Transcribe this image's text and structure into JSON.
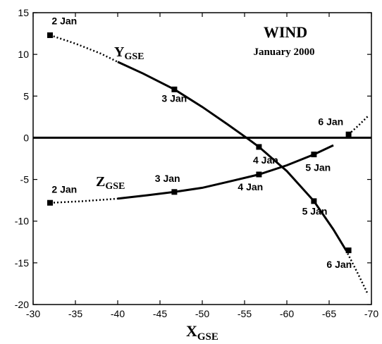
{
  "chart_data": {
    "type": "line",
    "title": "WIND",
    "subtitle": "January 2000",
    "xlabel": {
      "main": "X",
      "sub": "GSE"
    },
    "ylabel": "",
    "xlim": [
      -30,
      -70
    ],
    "ylim": [
      -20,
      15
    ],
    "xticks": [
      -30,
      -35,
      -40,
      -45,
      -50,
      -55,
      -60,
      -65,
      -70
    ],
    "yticks": [
      -20,
      -15,
      -10,
      -5,
      0,
      5,
      10,
      15
    ],
    "zero_line": true,
    "grid": false,
    "legend": "none",
    "series": [
      {
        "name": {
          "main": "Y",
          "sub": "GSE"
        },
        "dashed_before_x": -40,
        "dashed_after_x": -67,
        "points": [
          {
            "x": -32.0,
            "y": 12.3
          },
          {
            "x": -35.0,
            "y": 11.3
          },
          {
            "x": -38.0,
            "y": 10.1
          },
          {
            "x": -40.0,
            "y": 9.1
          },
          {
            "x": -43.0,
            "y": 7.7
          },
          {
            "x": -46.7,
            "y": 5.8
          },
          {
            "x": -50.0,
            "y": 3.7
          },
          {
            "x": -53.0,
            "y": 1.6
          },
          {
            "x": -55.5,
            "y": -0.2
          },
          {
            "x": -56.7,
            "y": -1.1
          },
          {
            "x": -60.0,
            "y": -4.0
          },
          {
            "x": -63.2,
            "y": -7.6
          },
          {
            "x": -65.5,
            "y": -11.0
          },
          {
            "x": -67.0,
            "y": -13.5
          },
          {
            "x": -68.5,
            "y": -16.5
          },
          {
            "x": -69.6,
            "y": -18.8
          }
        ],
        "markers": [
          {
            "x": -32.0,
            "y": 12.3
          },
          {
            "x": -46.7,
            "y": 5.8
          },
          {
            "x": -56.7,
            "y": -1.1
          },
          {
            "x": -63.2,
            "y": -7.6
          },
          {
            "x": -67.3,
            "y": -13.5
          }
        ]
      },
      {
        "name": {
          "main": "Z",
          "sub": "GSE"
        },
        "dashed_before_x": -40,
        "dashed_after_x": -67,
        "points": [
          {
            "x": -32.0,
            "y": -7.8
          },
          {
            "x": -36.0,
            "y": -7.6
          },
          {
            "x": -40.0,
            "y": -7.3
          },
          {
            "x": -43.5,
            "y": -6.9
          },
          {
            "x": -46.7,
            "y": -6.5
          },
          {
            "x": -50.0,
            "y": -6.0
          },
          {
            "x": -53.0,
            "y": -5.3
          },
          {
            "x": -56.7,
            "y": -4.4
          },
          {
            "x": -60.0,
            "y": -3.3
          },
          {
            "x": -63.2,
            "y": -2.0
          },
          {
            "x": -65.5,
            "y": -0.9
          },
          {
            "x": -67.3,
            "y": 0.4
          },
          {
            "x": -68.5,
            "y": 1.5
          },
          {
            "x": -69.7,
            "y": 2.7
          }
        ],
        "markers": [
          {
            "x": -32.0,
            "y": -7.8
          },
          {
            "x": -46.7,
            "y": -6.5
          },
          {
            "x": -56.7,
            "y": -4.4
          },
          {
            "x": -63.2,
            "y": -2.0
          },
          {
            "x": -67.3,
            "y": 0.4
          }
        ]
      }
    ],
    "annotations": [
      {
        "text": "2 Jan",
        "x": -32.2,
        "y": 13.6
      },
      {
        "text": "3 Jan",
        "x": -45.2,
        "y": 4.3
      },
      {
        "text": "4 Jan",
        "x": -56.0,
        "y": -3.1
      },
      {
        "text": "5 Jan",
        "x": -61.8,
        "y": -9.2
      },
      {
        "text": "6 Jan",
        "x": -64.7,
        "y": -15.6
      },
      {
        "text": "2 Jan",
        "x": -32.2,
        "y": -6.6
      },
      {
        "text": "3 Jan",
        "x": -44.4,
        "y": -5.3
      },
      {
        "text": "4 Jan",
        "x": -54.2,
        "y": -6.3
      },
      {
        "text": "5 Jan",
        "x": -62.2,
        "y": -4.0
      },
      {
        "text": "6 Jan",
        "x": -63.7,
        "y": 1.5
      }
    ]
  }
}
